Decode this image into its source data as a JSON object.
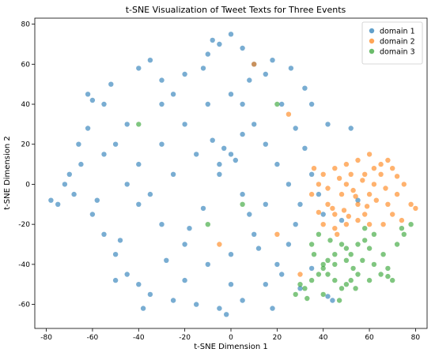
{
  "chart_data": {
    "type": "scatter",
    "title": "t-SNE Visualization of Tweet Texts for Three Events",
    "xlabel": "t-SNE Dimension 1",
    "ylabel": "t-SNE Dimension 2",
    "xlim": [
      -85,
      85
    ],
    "ylim": [
      -72,
      83
    ],
    "xticks": [
      -80,
      -60,
      -40,
      -20,
      0,
      20,
      40,
      60,
      80
    ],
    "yticks": [
      -60,
      -40,
      -20,
      0,
      20,
      40,
      60,
      80
    ],
    "grid": false,
    "legend_position": "top-right",
    "series": [
      {
        "name": "domain 1",
        "color": "#1f77b4",
        "points": [
          [
            -60,
            42
          ],
          [
            -55,
            40
          ],
          [
            -62,
            45
          ],
          [
            -40,
            58
          ],
          [
            -35,
            62
          ],
          [
            -20,
            55
          ],
          [
            -10,
            65
          ],
          [
            -5,
            70
          ],
          [
            0,
            75
          ],
          [
            5,
            68
          ],
          [
            10,
            60
          ],
          [
            15,
            55
          ],
          [
            -25,
            45
          ],
          [
            -30,
            40
          ],
          [
            -45,
            30
          ],
          [
            -50,
            20
          ],
          [
            -55,
            15
          ],
          [
            -65,
            10
          ],
          [
            -70,
            5
          ],
          [
            -72,
            0
          ],
          [
            -75,
            -10
          ],
          [
            -68,
            -5
          ],
          [
            -60,
            -15
          ],
          [
            -55,
            -25
          ],
          [
            -50,
            -35
          ],
          [
            -45,
            -45
          ],
          [
            -40,
            -50
          ],
          [
            -35,
            -55
          ],
          [
            -25,
            -58
          ],
          [
            -15,
            -60
          ],
          [
            -5,
            -62
          ],
          [
            5,
            -58
          ],
          [
            15,
            -50
          ],
          [
            20,
            -40
          ],
          [
            25,
            -30
          ],
          [
            28,
            -20
          ],
          [
            30,
            -10
          ],
          [
            25,
            0
          ],
          [
            20,
            10
          ],
          [
            15,
            20
          ],
          [
            10,
            30
          ],
          [
            5,
            40
          ],
          [
            0,
            45
          ],
          [
            -10,
            40
          ],
          [
            -20,
            30
          ],
          [
            -30,
            20
          ],
          [
            -40,
            10
          ],
          [
            -45,
            0
          ],
          [
            -40,
            -10
          ],
          [
            -30,
            -20
          ],
          [
            -20,
            -30
          ],
          [
            -10,
            -40
          ],
          [
            0,
            -35
          ],
          [
            10,
            -25
          ],
          [
            15,
            -10
          ],
          [
            5,
            -5
          ],
          [
            -5,
            5
          ],
          [
            -15,
            15
          ],
          [
            -25,
            5
          ],
          [
            -35,
            -5
          ],
          [
            0,
            15
          ],
          [
            -5,
            10
          ],
          [
            2,
            12
          ],
          [
            -3,
            18
          ],
          [
            5,
            25
          ],
          [
            -8,
            22
          ],
          [
            -12,
            -12
          ],
          [
            8,
            -15
          ],
          [
            -18,
            -22
          ],
          [
            12,
            -32
          ],
          [
            -28,
            -38
          ],
          [
            22,
            -45
          ],
          [
            -48,
            -28
          ],
          [
            -58,
            -8
          ],
          [
            -62,
            28
          ],
          [
            -52,
            50
          ],
          [
            -30,
            52
          ],
          [
            -12,
            58
          ],
          [
            8,
            52
          ],
          [
            22,
            40
          ],
          [
            28,
            28
          ],
          [
            32,
            18
          ],
          [
            35,
            5
          ],
          [
            38,
            -5
          ],
          [
            40,
            -15
          ],
          [
            -78,
            -8
          ],
          [
            -66,
            20
          ],
          [
            -8,
            72
          ],
          [
            -2,
            -65
          ],
          [
            18,
            -62
          ],
          [
            30,
            -52
          ],
          [
            42,
            -56
          ],
          [
            44,
            -58
          ],
          [
            35,
            -42
          ],
          [
            48,
            -18
          ],
          [
            55,
            -8
          ],
          [
            32,
            48
          ],
          [
            26,
            58
          ],
          [
            18,
            62
          ],
          [
            35,
            40
          ],
          [
            42,
            30
          ],
          [
            52,
            28
          ],
          [
            -38,
            -62
          ],
          [
            -20,
            -48
          ],
          [
            0,
            -50
          ],
          [
            -50,
            -48
          ]
        ]
      },
      {
        "name": "domain 2",
        "color": "#ff7f0e",
        "points": [
          [
            35,
            -5
          ],
          [
            38,
            0
          ],
          [
            40,
            5
          ],
          [
            42,
            -10
          ],
          [
            45,
            -15
          ],
          [
            48,
            -5
          ],
          [
            50,
            0
          ],
          [
            52,
            5
          ],
          [
            55,
            -10
          ],
          [
            58,
            -15
          ],
          [
            60,
            -5
          ],
          [
            62,
            0
          ],
          [
            65,
            5
          ],
          [
            68,
            -10
          ],
          [
            70,
            -15
          ],
          [
            72,
            -5
          ],
          [
            75,
            0
          ],
          [
            78,
            -10
          ],
          [
            80,
            -12
          ],
          [
            65,
            10
          ],
          [
            68,
            12
          ],
          [
            62,
            8
          ],
          [
            60,
            15
          ],
          [
            55,
            12
          ],
          [
            50,
            10
          ],
          [
            45,
            8
          ],
          [
            40,
            -20
          ],
          [
            45,
            -22
          ],
          [
            50,
            -20
          ],
          [
            55,
            -18
          ],
          [
            60,
            -20
          ],
          [
            42,
            -2
          ],
          [
            47,
            3
          ],
          [
            53,
            -3
          ],
          [
            57,
            2
          ],
          [
            63,
            -8
          ],
          [
            67,
            -2
          ],
          [
            44,
            -12
          ],
          [
            49,
            -13
          ],
          [
            54,
            -6
          ],
          [
            59,
            -11
          ],
          [
            38,
            -14
          ],
          [
            36,
            8
          ],
          [
            70,
            8
          ],
          [
            74,
            -18
          ],
          [
            58,
            5
          ],
          [
            51,
            -16
          ],
          [
            46,
            -25
          ],
          [
            66,
            -20
          ],
          [
            72,
            4
          ],
          [
            20,
            -25
          ],
          [
            10,
            60
          ],
          [
            25,
            35
          ],
          [
            -5,
            -30
          ],
          [
            30,
            -45
          ]
        ]
      },
      {
        "name": "domain 3",
        "color": "#2ca02c",
        "points": [
          [
            30,
            -50
          ],
          [
            32,
            -52
          ],
          [
            35,
            -48
          ],
          [
            38,
            -45
          ],
          [
            40,
            -40
          ],
          [
            42,
            -38
          ],
          [
            45,
            -35
          ],
          [
            48,
            -30
          ],
          [
            50,
            -32
          ],
          [
            52,
            -35
          ],
          [
            55,
            -30
          ],
          [
            58,
            -28
          ],
          [
            60,
            -32
          ],
          [
            55,
            -45
          ],
          [
            52,
            -48
          ],
          [
            50,
            -50
          ],
          [
            48,
            -52
          ],
          [
            45,
            -48
          ],
          [
            42,
            -45
          ],
          [
            40,
            -42
          ],
          [
            65,
            -45
          ],
          [
            68,
            -42
          ],
          [
            70,
            -48
          ],
          [
            72,
            -30
          ],
          [
            75,
            -25
          ],
          [
            78,
            -20
          ],
          [
            62,
            -25
          ],
          [
            58,
            -22
          ],
          [
            35,
            -30
          ],
          [
            38,
            -25
          ],
          [
            45,
            -40
          ],
          [
            50,
            -38
          ],
          [
            53,
            -42
          ],
          [
            57,
            -38
          ],
          [
            62,
            -40
          ],
          [
            28,
            -55
          ],
          [
            33,
            -57
          ],
          [
            47,
            -58
          ],
          [
            36,
            -35
          ],
          [
            43,
            -28
          ],
          [
            66,
            -35
          ],
          [
            74,
            -22
          ],
          [
            60,
            -48
          ],
          [
            54,
            -52
          ],
          [
            40,
            -55
          ],
          [
            -10,
            -20
          ],
          [
            20,
            40
          ],
          [
            -40,
            30
          ],
          [
            5,
            -10
          ],
          [
            68,
            -46
          ]
        ]
      }
    ]
  }
}
